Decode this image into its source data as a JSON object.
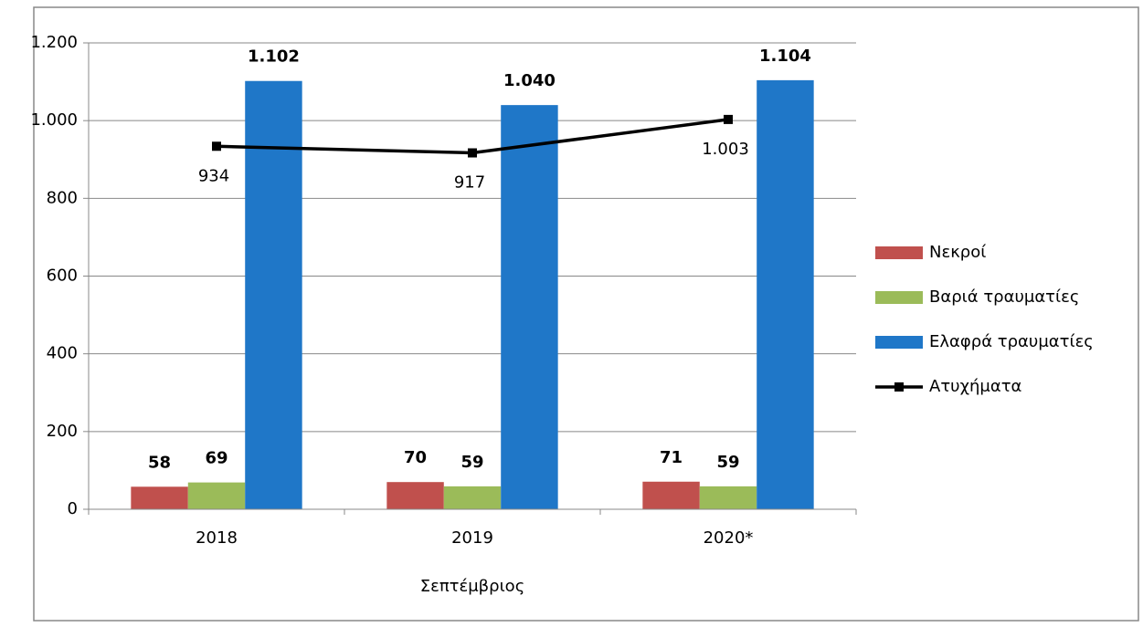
{
  "chart_data": {
    "type": "bar-line",
    "categories": [
      "2018",
      "2019",
      "2020*"
    ],
    "x_label": "Σεπτέμβριος",
    "ylim": [
      0,
      1200
    ],
    "yticks": [
      0,
      200,
      400,
      600,
      800,
      {
        "value": 1000,
        "label": "1.000"
      },
      {
        "value": 1200,
        "label": "1.200"
      }
    ],
    "grid": true,
    "legend": "right",
    "series": [
      {
        "name": "Νεκροί",
        "type": "bar",
        "color": "#c0504d",
        "values": [
          58,
          70,
          71
        ]
      },
      {
        "name": "Βαριά τραυματίες",
        "type": "bar",
        "color": "#9bbb59",
        "values": [
          69,
          59,
          59
        ]
      },
      {
        "name": "Ελαφρά τραυματίες",
        "type": "bar",
        "color": "#1f77c8",
        "values": [
          1102,
          1040,
          1104
        ],
        "value_labels": [
          "1.102",
          "1.040",
          "1.104"
        ]
      },
      {
        "name": "Ατυχήματα",
        "type": "line",
        "color": "#000000",
        "values": [
          934,
          917,
          1003
        ],
        "value_labels": [
          "934",
          "917",
          "1.003"
        ]
      }
    ]
  }
}
